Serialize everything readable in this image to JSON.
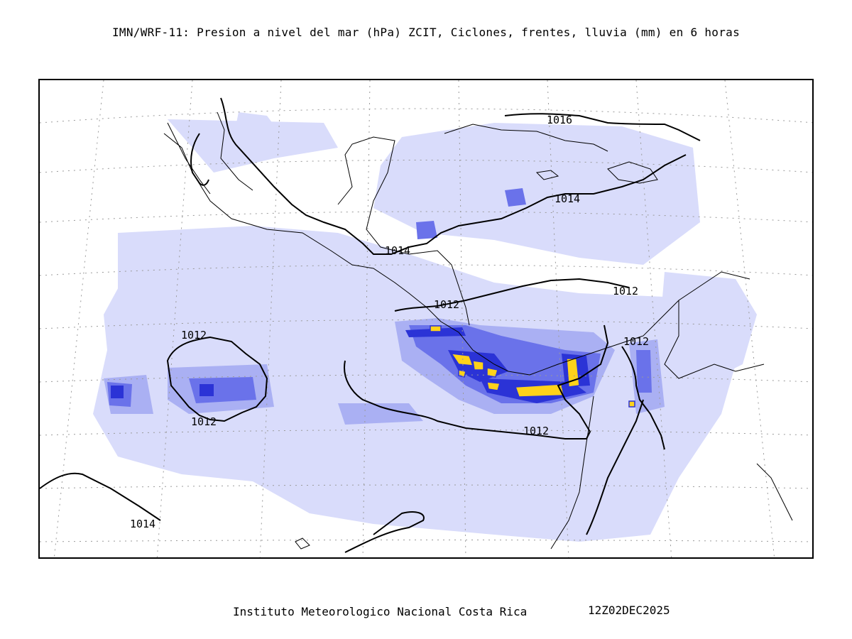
{
  "title": "IMN/WRF-11: Presion a nivel del mar (hPa) ZCIT, Ciclones, frentes, lluvia (mm) en 6 horas",
  "footer": {
    "institution": "Instituto Meteorologico Nacional Costa Rica",
    "datetime": "12Z02DEC2025"
  },
  "colors": {
    "rain_light": "#d9dcfb",
    "rain_medium": "#aab0f3",
    "rain_strong": "#6a72ea",
    "rain_intense": "#2b33d6",
    "rain_extreme": "#ffd21a",
    "rain_peak": "#f7ea1a",
    "isobar": "#000000",
    "coastline": "#000000",
    "graticule": "#9a9a9a"
  },
  "isobar_labels": [
    {
      "text": "1016"
    },
    {
      "text": "1014"
    },
    {
      "text": "1014"
    },
    {
      "text": "1012"
    },
    {
      "text": "1012"
    },
    {
      "text": "1012"
    },
    {
      "text": "1012"
    },
    {
      "text": "1012"
    },
    {
      "text": "1012"
    },
    {
      "text": "1014"
    }
  ]
}
